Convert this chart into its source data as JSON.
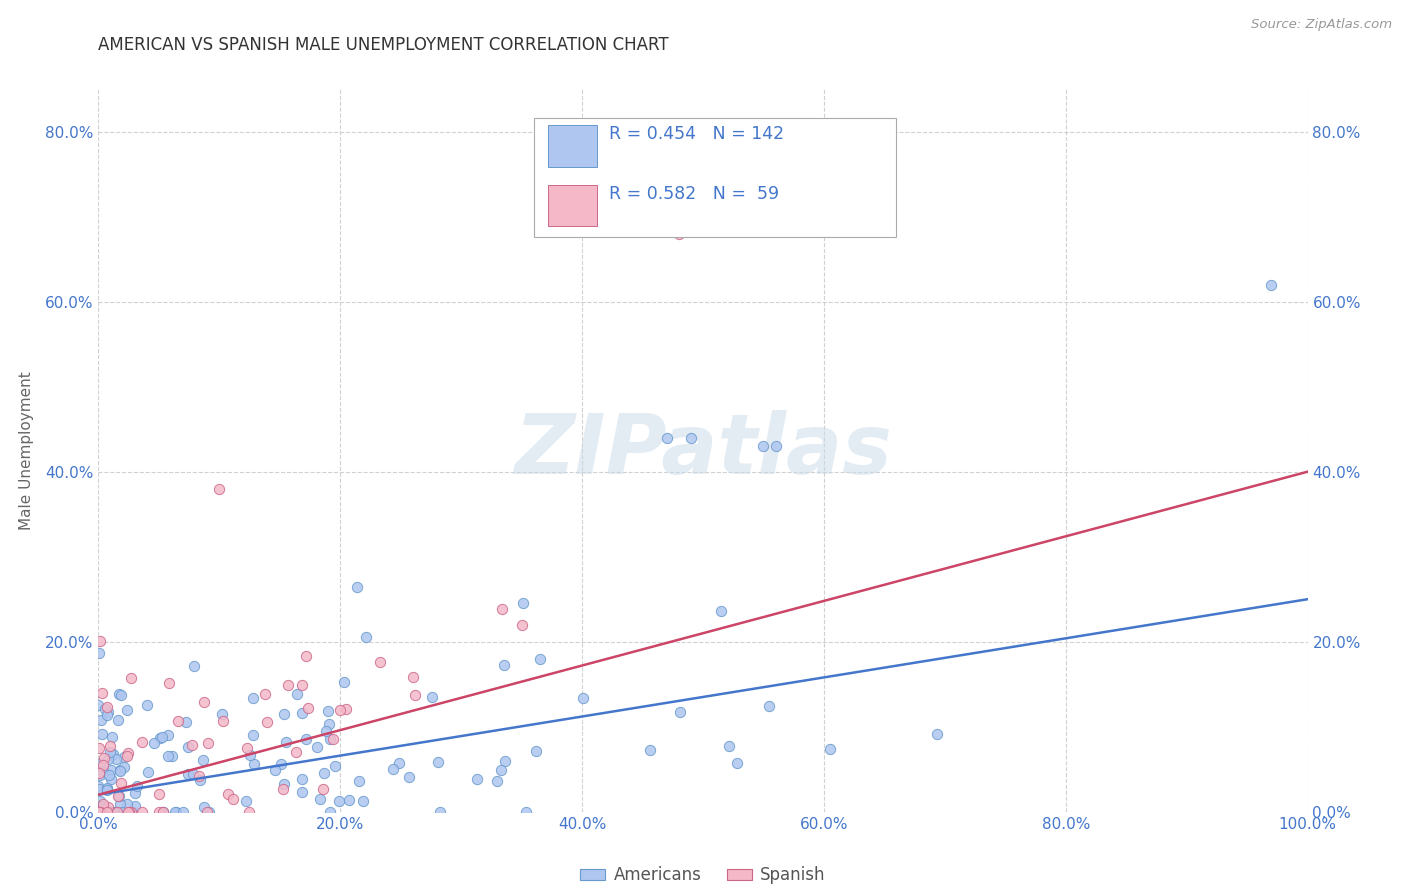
{
  "title": "AMERICAN VS SPANISH MALE UNEMPLOYMENT CORRELATION CHART",
  "source": "Source: ZipAtlas.com",
  "ylabel": "Male Unemployment",
  "legend_entries": [
    {
      "label": "Americans",
      "color": "#aec6f0",
      "edge": "#6699cc",
      "R": 0.454,
      "N": 142
    },
    {
      "label": "Spanish",
      "color": "#f4b8c8",
      "edge": "#cc6688",
      "R": 0.582,
      "N": 59
    }
  ],
  "trendline_americans": "#4477cc",
  "trendline_spanish": "#cc4466",
  "watermark": "ZIPatlas",
  "background_color": "#ffffff",
  "grid_color": "#cccccc",
  "title_color": "#333333",
  "source_color": "#999999",
  "axis_tick_color": "#4477cc",
  "xlim": [
    0,
    1.0
  ],
  "ylim": [
    0,
    0.85
  ],
  "xticks": [
    0,
    0.2,
    0.4,
    0.6,
    0.8,
    1.0
  ],
  "yticks": [
    0,
    0.2,
    0.4,
    0.6,
    0.8
  ],
  "americans_seed": 77,
  "spanish_seed": 55,
  "am_R": 0.454,
  "am_N": 142,
  "sp_R": 0.582,
  "sp_N": 59
}
